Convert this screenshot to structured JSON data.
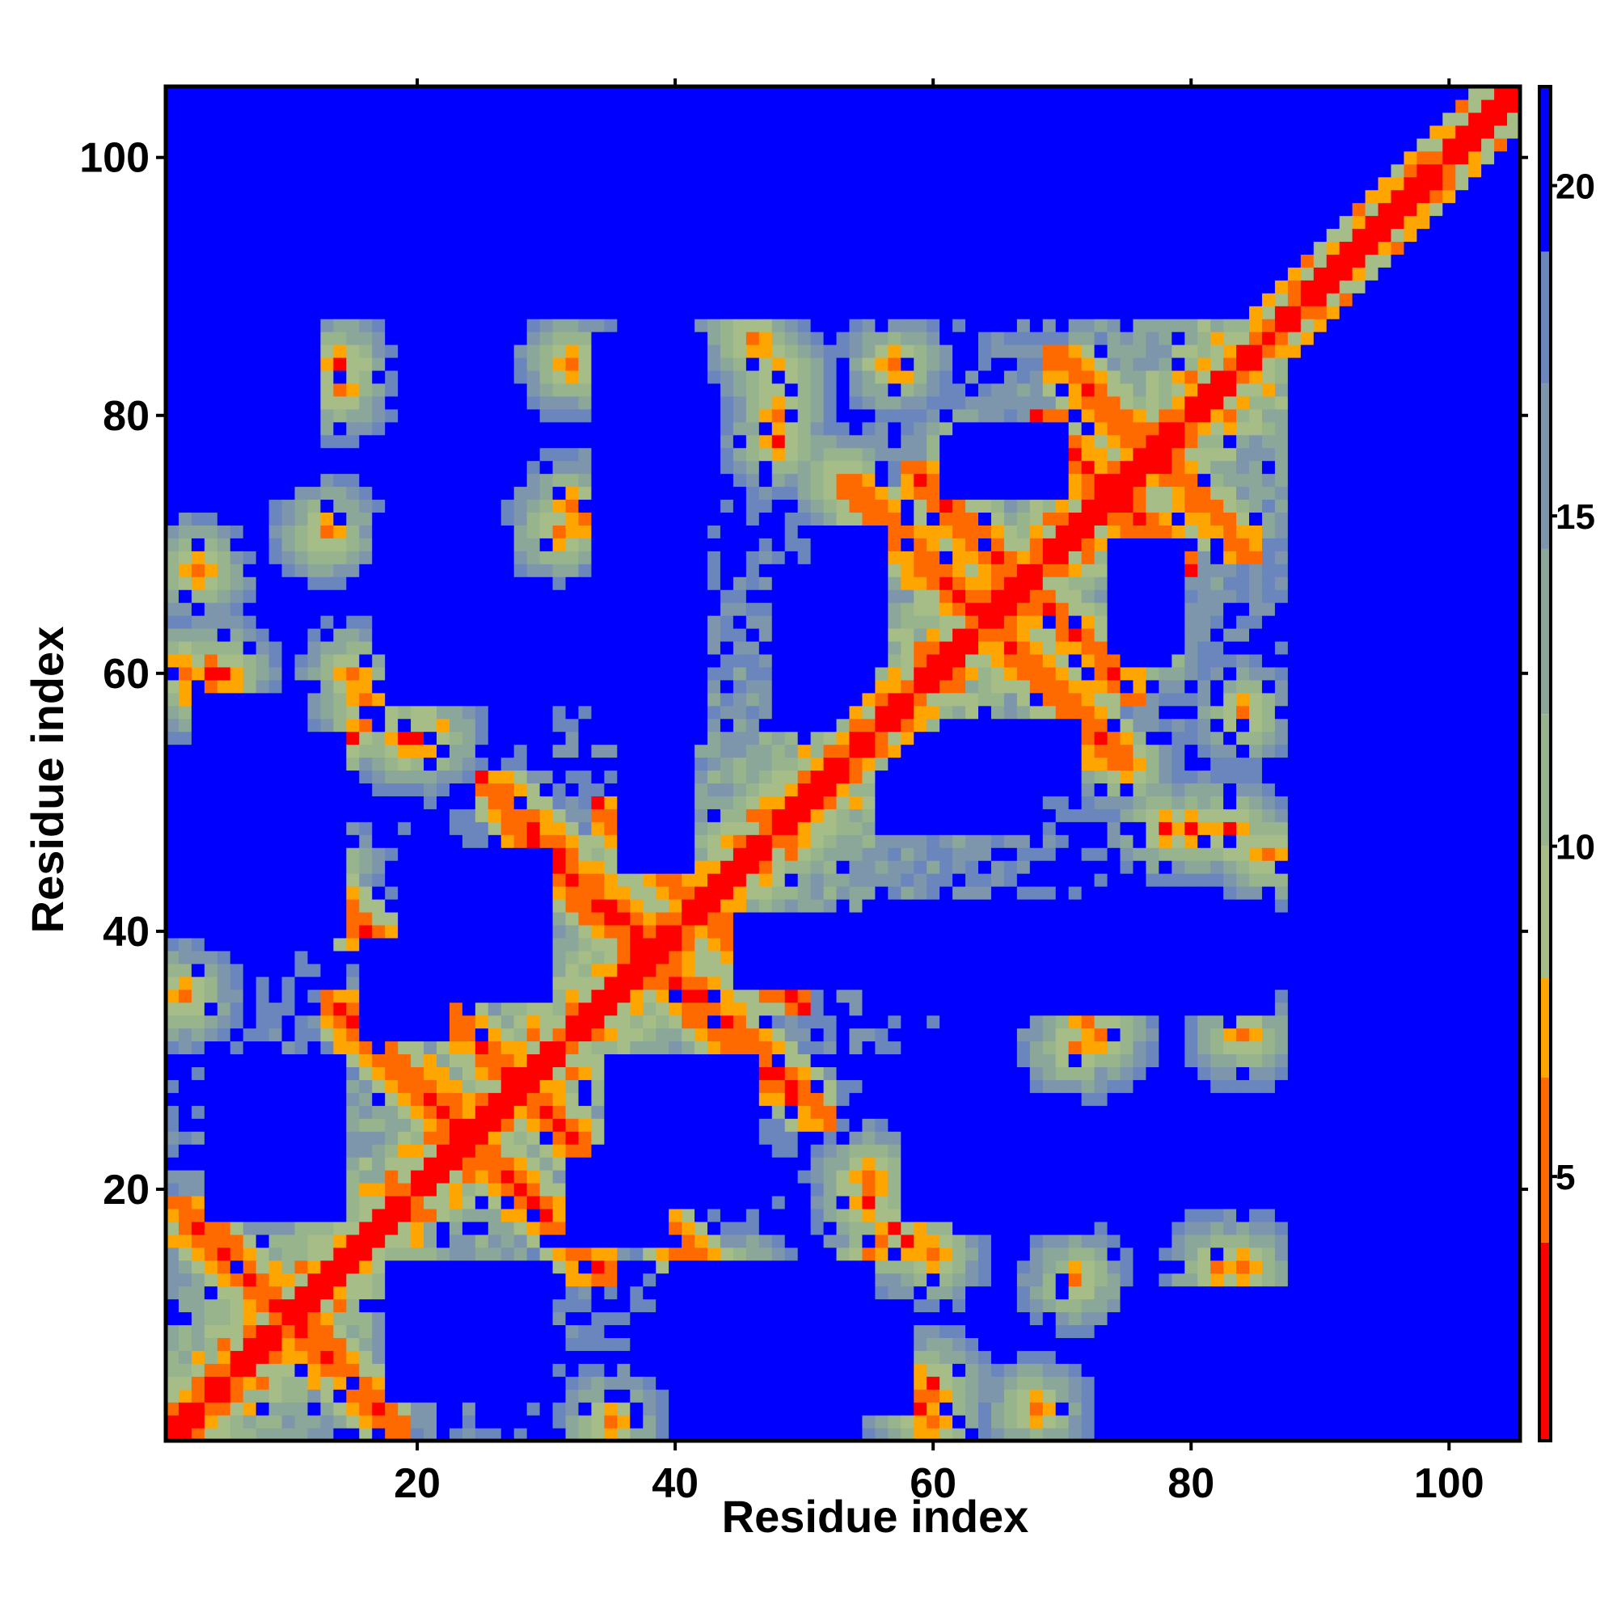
{
  "chart_data": {
    "type": "heatmap",
    "title": "",
    "xlabel": "Residue index",
    "ylabel": "Residue index",
    "n_residues": 105,
    "xlim": [
      0.5,
      105.5
    ],
    "ylim": [
      0.5,
      105.5
    ],
    "x_ticks": [
      20,
      40,
      60,
      80,
      100
    ],
    "y_ticks": [
      20,
      40,
      60,
      80,
      100
    ],
    "x_tick_labels": [
      "20",
      "40",
      "60",
      "80",
      "100"
    ],
    "y_tick_labels": [
      "20",
      "40",
      "60",
      "80",
      "100"
    ],
    "colorbar": {
      "range": [
        1,
        21.5
      ],
      "ticks": [
        5,
        10,
        15,
        20
      ],
      "tick_labels": [
        "5",
        "10",
        "15",
        "20"
      ],
      "scale": [
        {
          "max": 4.0,
          "color": "#ff0000"
        },
        {
          "max": 6.5,
          "color": "#ff6a00"
        },
        {
          "max": 8.0,
          "color": "#ffa500"
        },
        {
          "max": 10.0,
          "color": "#a6bd88"
        },
        {
          "max": 12.0,
          "color": "#98b48c"
        },
        {
          "max": 14.5,
          "color": "#8aa79a"
        },
        {
          "max": 17.0,
          "color": "#7d96ac"
        },
        {
          "max": 19.0,
          "color": "#6a86bd"
        },
        {
          "max": 100,
          "color": "#0000ff"
        }
      ]
    },
    "diagonal_band": {
      "core_width": 1.6,
      "description_values": "distance ~1-4 on diagonal"
    },
    "contact_features": [
      {
        "kind": "antiparallel",
        "sum": 20,
        "from": 1,
        "to": 9,
        "strength": 1.0
      },
      {
        "kind": "antiparallel",
        "sum": 48,
        "from": 13,
        "to": 20,
        "strength": 1.0
      },
      {
        "kind": "antiparallel",
        "sum": 56,
        "from": 4,
        "to": 15,
        "strength": 0.9
      },
      {
        "kind": "antiparallel",
        "sum": 76,
        "from": 27,
        "to": 41,
        "strength": 1.0
      },
      {
        "kind": "antiparallel",
        "sum": 84,
        "from": 39,
        "to": 50,
        "strength": 0.9
      },
      {
        "kind": "antiparallel",
        "sum": 128,
        "from": 53,
        "to": 67,
        "strength": 1.0
      },
      {
        "kind": "antiparallel",
        "sum": 148,
        "from": 70,
        "to": 80,
        "strength": 1.0
      },
      {
        "kind": "antiparallel",
        "sum": 134,
        "from": 58,
        "to": 64,
        "strength": 0.7
      },
      {
        "kind": "antiparallel",
        "sum": 77,
        "from": 25,
        "to": 35,
        "strength": 0.8
      },
      {
        "kind": "antiparallel",
        "sum": 154,
        "from": 69,
        "to": 79,
        "strength": 0.6
      },
      {
        "kind": "parallel",
        "offset": 40,
        "from": 14,
        "to": 18,
        "strength": 0.5
      },
      {
        "kind": "spot",
        "x": 2,
        "y": 60,
        "strength": 1.0
      },
      {
        "kind": "spot",
        "x": 4,
        "y": 60,
        "strength": 1.0
      },
      {
        "kind": "spot",
        "x": 19,
        "y": 55,
        "strength": 1.0
      },
      {
        "kind": "spot",
        "x": 21,
        "y": 55,
        "strength": 0.9
      },
      {
        "kind": "spot",
        "x": 59,
        "y": 3,
        "strength": 1.0
      },
      {
        "kind": "spot",
        "x": 60,
        "y": 5,
        "strength": 1.0
      },
      {
        "kind": "spot",
        "x": 55,
        "y": 20,
        "strength": 0.9
      },
      {
        "kind": "spot",
        "x": 58,
        "y": 16,
        "strength": 0.8
      },
      {
        "kind": "spot",
        "x": 57,
        "y": 84,
        "strength": 0.7
      },
      {
        "kind": "spot",
        "x": 53,
        "y": 75,
        "strength": 0.9
      },
      {
        "kind": "spot",
        "x": 46,
        "y": 86,
        "strength": 0.7
      },
      {
        "kind": "spot",
        "x": 48,
        "y": 78,
        "strength": 0.8
      },
      {
        "kind": "spot",
        "x": 83,
        "y": 48,
        "strength": 0.8
      },
      {
        "kind": "spot",
        "x": 86,
        "y": 46,
        "strength": 0.8
      },
      {
        "kind": "spot",
        "x": 72,
        "y": 33,
        "strength": 0.7
      },
      {
        "kind": "spot",
        "x": 84,
        "y": 32,
        "strength": 0.7
      },
      {
        "kind": "spot",
        "x": 84,
        "y": 14,
        "strength": 0.7
      },
      {
        "kind": "spot",
        "x": 71,
        "y": 13,
        "strength": 0.6
      },
      {
        "kind": "spot",
        "x": 32,
        "y": 73,
        "strength": 0.7
      },
      {
        "kind": "spot",
        "x": 15,
        "y": 60,
        "strength": 0.7
      },
      {
        "kind": "spot",
        "x": 3,
        "y": 68,
        "strength": 0.7
      },
      {
        "kind": "spot",
        "x": 14,
        "y": 82,
        "strength": 0.6
      },
      {
        "kind": "spot",
        "x": 31,
        "y": 71,
        "strength": 0.6
      },
      {
        "kind": "spot",
        "x": 77,
        "y": 62,
        "strength": 0.7
      },
      {
        "kind": "spot",
        "x": 48,
        "y": 80,
        "strength": 0.7
      },
      {
        "kind": "spot",
        "x": 13,
        "y": 45,
        "strength": 0.6
      },
      {
        "kind": "spot",
        "x": 2,
        "y": 35,
        "strength": 0.6
      }
    ],
    "empty_regions": [
      {
        "x": [
          8,
          14
        ],
        "y": [
          22,
          27
        ]
      },
      {
        "x": [
          18,
          30
        ],
        "y": [
          4,
          14
        ]
      },
      {
        "x": [
          18,
          27
        ],
        "y": [
          58,
          71
        ]
      },
      {
        "x": [
          19,
          30
        ],
        "y": [
          35,
          46
        ]
      },
      {
        "x": [
          32,
          39
        ],
        "y": [
          16,
          22
        ]
      },
      {
        "x": [
          34,
          42
        ],
        "y": [
          55,
          86
        ]
      },
      {
        "x": [
          6,
          14
        ],
        "y": [
          40,
          55
        ]
      },
      {
        "x": [
          4,
          12
        ],
        "y": [
          75,
          88
        ]
      },
      {
        "x": [
          48,
          55
        ],
        "y": [
          56,
          68
        ]
      },
      {
        "x": [
          48,
          58
        ],
        "y": [
          3,
          9
        ]
      },
      {
        "x": [
          61,
          71
        ],
        "y": [
          51,
          56
        ]
      },
      {
        "x": [
          62,
          70
        ],
        "y": [
          74,
          79
        ]
      },
      {
        "x": [
          62,
          72
        ],
        "y": [
          17,
          24
        ]
      },
      {
        "x": [
          74,
          80
        ],
        "y": [
          5,
          10
        ]
      },
      {
        "x": [
          75,
          78
        ],
        "y": [
          61,
          67
        ]
      },
      {
        "x": [
          45,
          75
        ],
        "y": [
          36,
          41
        ]
      },
      {
        "x": [
          1,
          105
        ],
        "y": [
          93,
          106
        ]
      },
      {
        "x": [
          88,
          106
        ],
        "y": [
          1,
          90
        ]
      },
      {
        "x": [
          1,
          48
        ],
        "y": [
          88,
          106
        ]
      },
      {
        "x": [
          60,
          106
        ],
        "y": [
          96,
          106
        ]
      }
    ]
  }
}
